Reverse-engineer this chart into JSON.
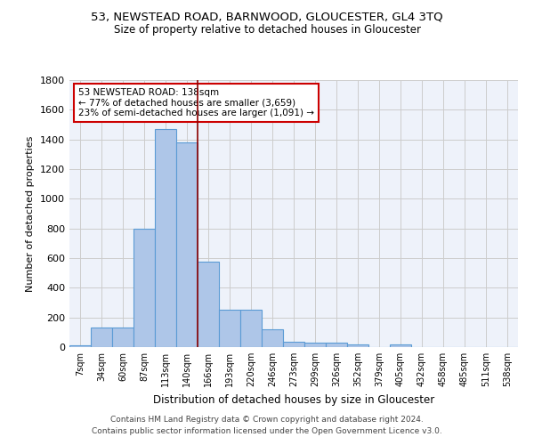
{
  "title": "53, NEWSTEAD ROAD, BARNWOOD, GLOUCESTER, GL4 3TQ",
  "subtitle": "Size of property relative to detached houses in Gloucester",
  "xlabel": "Distribution of detached houses by size in Gloucester",
  "ylabel": "Number of detached properties",
  "footer1": "Contains HM Land Registry data © Crown copyright and database right 2024.",
  "footer2": "Contains public sector information licensed under the Open Government Licence v3.0.",
  "bar_labels": [
    "7sqm",
    "34sqm",
    "60sqm",
    "87sqm",
    "113sqm",
    "140sqm",
    "166sqm",
    "193sqm",
    "220sqm",
    "246sqm",
    "273sqm",
    "299sqm",
    "326sqm",
    "352sqm",
    "379sqm",
    "405sqm",
    "432sqm",
    "458sqm",
    "485sqm",
    "511sqm",
    "538sqm"
  ],
  "bar_values": [
    10,
    130,
    130,
    800,
    1470,
    1380,
    575,
    250,
    250,
    120,
    35,
    30,
    30,
    20,
    0,
    20,
    0,
    0,
    0,
    0,
    0
  ],
  "bar_color": "#aec6e8",
  "bar_edge_color": "#5b9bd5",
  "bar_edge_width": 0.8,
  "grid_color": "#cccccc",
  "background_color": "#ffffff",
  "plot_bg_color": "#eef2fa",
  "red_line_x": 5.5,
  "red_line_color": "#8b0000",
  "annotation_text": "53 NEWSTEAD ROAD: 138sqm\n← 77% of detached houses are smaller (3,659)\n23% of semi-detached houses are larger (1,091) →",
  "annotation_box_color": "#ffffff",
  "annotation_box_edge": "#cc0000",
  "ylim": [
    0,
    1800
  ],
  "yticks": [
    0,
    200,
    400,
    600,
    800,
    1000,
    1200,
    1400,
    1600,
    1800
  ]
}
